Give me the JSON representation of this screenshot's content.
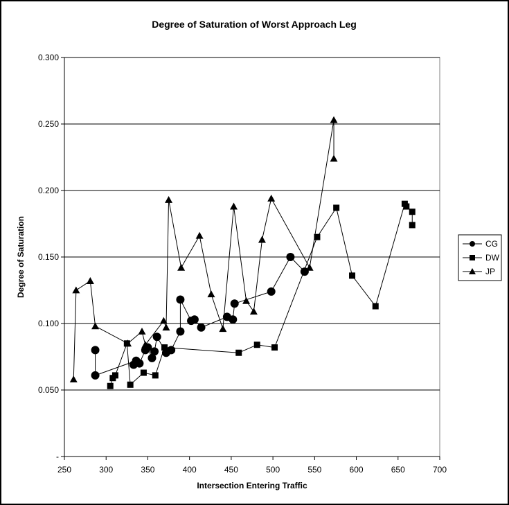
{
  "chart_data": {
    "type": "scatter",
    "title": "Degree of Saturation of Worst Approach Leg",
    "xlabel": "Intersection Entering Traffic",
    "ylabel": "Degree of Saturation",
    "xlim": [
      250,
      700
    ],
    "ylim": [
      0,
      0.3
    ],
    "x_ticks": [
      "250",
      "300",
      "350",
      "400",
      "450",
      "500",
      "550",
      "600",
      "650",
      "700"
    ],
    "y_ticks": [
      "-",
      "0.050",
      "0.100",
      "0.150",
      "0.200",
      "0.250",
      "0.300"
    ],
    "grid": "horizontal",
    "legend_position": "right",
    "series": [
      {
        "name": "CG",
        "marker": "circle",
        "points": [
          [
            287,
            0.08
          ],
          [
            287,
            0.061
          ],
          [
            336,
            0.072
          ],
          [
            333,
            0.069
          ],
          [
            340,
            0.07
          ],
          [
            347,
            0.08
          ],
          [
            350,
            0.082
          ],
          [
            355,
            0.074
          ],
          [
            358,
            0.079
          ],
          [
            361,
            0.09
          ],
          [
            372,
            0.078
          ],
          [
            378,
            0.08
          ],
          [
            389,
            0.094
          ],
          [
            389,
            0.118
          ],
          [
            402,
            0.102
          ],
          [
            406,
            0.103
          ],
          [
            414,
            0.097
          ],
          [
            445,
            0.105
          ],
          [
            452,
            0.103
          ],
          [
            454,
            0.115
          ],
          [
            498,
            0.124
          ],
          [
            521,
            0.15
          ],
          [
            538,
            0.139
          ]
        ]
      },
      {
        "name": "DW",
        "marker": "square",
        "points": [
          [
            305,
            0.053
          ],
          [
            308,
            0.059
          ],
          [
            311,
            0.061
          ],
          [
            325,
            0.085
          ],
          [
            329,
            0.054
          ],
          [
            345,
            0.063
          ],
          [
            359,
            0.061
          ],
          [
            370,
            0.082
          ],
          [
            459,
            0.078
          ],
          [
            481,
            0.084
          ],
          [
            502,
            0.082
          ],
          [
            553,
            0.165
          ],
          [
            576,
            0.187
          ],
          [
            595,
            0.136
          ],
          [
            623,
            0.113
          ],
          [
            658,
            0.19
          ],
          [
            660,
            0.188
          ],
          [
            667,
            0.184
          ],
          [
            667,
            0.174
          ]
        ]
      },
      {
        "name": "JP",
        "marker": "triangle",
        "points": [
          [
            261,
            0.058
          ],
          [
            264,
            0.125
          ],
          [
            281,
            0.132
          ],
          [
            287,
            0.098
          ],
          [
            326,
            0.085
          ],
          [
            343,
            0.094
          ],
          [
            347,
            0.084
          ],
          [
            369,
            0.102
          ],
          [
            372,
            0.097
          ],
          [
            375,
            0.193
          ],
          [
            390,
            0.142
          ],
          [
            412,
            0.166
          ],
          [
            426,
            0.122
          ],
          [
            440,
            0.096
          ],
          [
            453,
            0.188
          ],
          [
            468,
            0.117
          ],
          [
            477,
            0.109
          ],
          [
            487,
            0.163
          ],
          [
            498,
            0.194
          ],
          [
            544,
            0.142
          ],
          [
            573,
            0.253
          ],
          [
            573,
            0.224
          ]
        ]
      }
    ]
  }
}
